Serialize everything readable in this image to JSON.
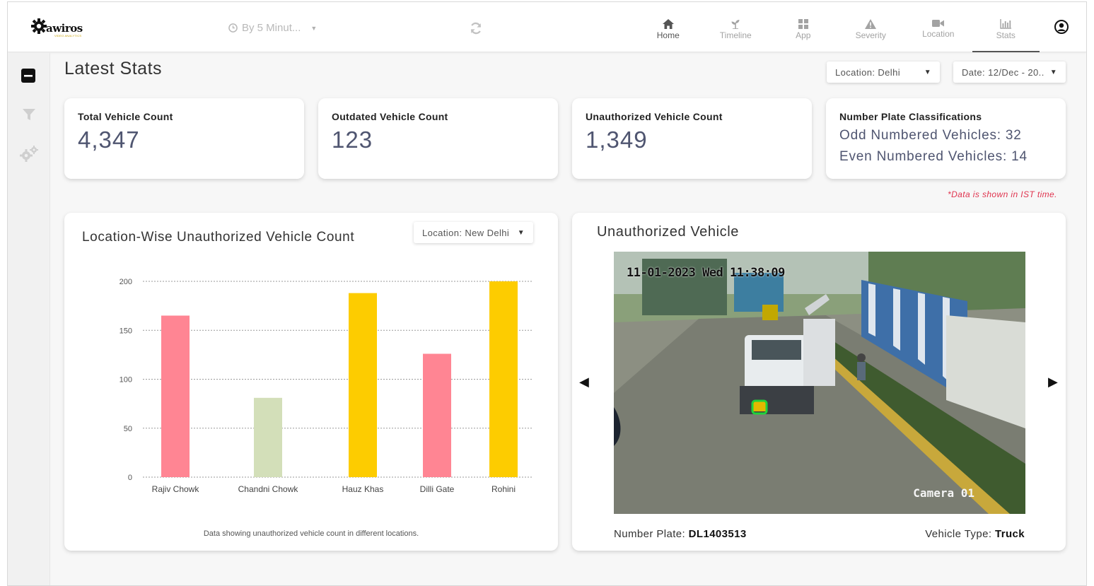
{
  "brand": {
    "logo_text": "awiros",
    "logo_subtext": "VIDEO ANALYTICS"
  },
  "header": {
    "interval_label": "By 5 Minut...",
    "nav": [
      {
        "label": "Home",
        "icon": "home-icon"
      },
      {
        "label": "Timeline",
        "icon": "timeline-icon"
      },
      {
        "label": "App",
        "icon": "app-grid-icon"
      },
      {
        "label": "Severity",
        "icon": "warning-icon"
      },
      {
        "label": "Location",
        "icon": "camera-icon"
      },
      {
        "label": "Stats",
        "icon": "stats-icon"
      }
    ],
    "active_nav": "Stats"
  },
  "sidebar": {
    "icons": [
      "collapse-icon",
      "filter-icon",
      "settings-gears-icon"
    ]
  },
  "page": {
    "title": "Latest Stats",
    "location_filter": "Location: Delhi",
    "date_filter": "Date: 12/Dec - 20..",
    "note": "*Data is shown in IST time."
  },
  "stats": {
    "total": {
      "label": "Total Vehicle Count",
      "value": "4,347"
    },
    "outdated": {
      "label": "Outdated Vehicle Count",
      "value": "123"
    },
    "unauthorized": {
      "label": "Unauthorized Vehicle Count",
      "value": "1,349"
    },
    "plates": {
      "label": "Number Plate Classifications",
      "odd": "Odd Numbered Vehicles: 32",
      "even": "Even Numbered Vehicles: 14"
    }
  },
  "chart_panel": {
    "title": "Location-Wise Unauthorized Vehicle Count",
    "location_filter": "Location: New Delhi",
    "caption": "Data showing unauthorized vehicle count in different locations."
  },
  "chart_data": {
    "type": "bar",
    "title": "Location-Wise Unauthorized Vehicle Count",
    "categories": [
      "Rajiv Chowk",
      "Chandni Chowk",
      "Hauz Khas",
      "Dilli Gate",
      "Rohini"
    ],
    "values": [
      165,
      81,
      188,
      126,
      200
    ],
    "bar_colors": [
      "#ff8593",
      "#d3dfb9",
      "#fdcc00",
      "#ff8593",
      "#fdcc00"
    ],
    "y_ticks": [
      0,
      50,
      100,
      150,
      200
    ],
    "ylim": [
      0,
      200
    ],
    "grid": true,
    "xlabel": "",
    "ylabel": ""
  },
  "unauthorized_vehicle": {
    "title": "Unauthorized Vehicle",
    "timestamp": "11-01-2023 Wed 11:38:09",
    "camera_label": "Camera 01",
    "plate_label": "Number Plate:",
    "plate_value": "DL1403513",
    "type_label": "Vehicle Type:",
    "type_value": "Truck"
  },
  "colors": {
    "value_text": "#4f5570",
    "note_red": "#e0344f",
    "bar_pink": "#ff8593",
    "bar_green": "#d3dfb9",
    "bar_yellow": "#fdcc00"
  }
}
